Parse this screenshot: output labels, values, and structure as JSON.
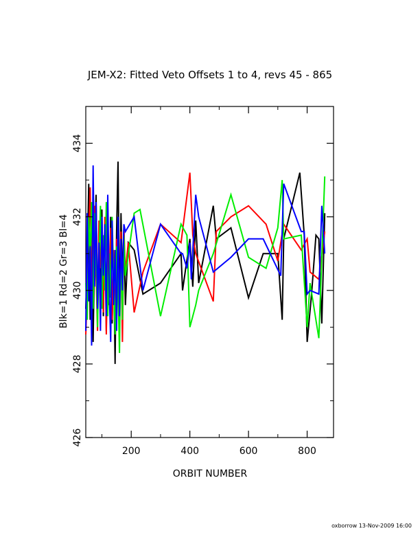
{
  "chart_data": {
    "type": "line",
    "title": "JEM-X2: Fitted Veto Offsets 1 to 4, revs 45 - 865",
    "xlabel": "ORBIT NUMBER",
    "ylabel": "Blk=1 Rd=2 Gr=3 Bl=4",
    "xlim": [
      45,
      890
    ],
    "ylim": [
      426,
      435
    ],
    "xticks": [
      200,
      400,
      600,
      800
    ],
    "xtick_labels": [
      "200",
      "400",
      "600",
      "800"
    ],
    "yticks": [
      426,
      428,
      430,
      432,
      434
    ],
    "ytick_labels": [
      "426",
      "428",
      "430",
      "432",
      "434"
    ],
    "grid": false,
    "footer": "oxborrow 13-Nov-2009 16:00",
    "series": [
      {
        "color": "#000000",
        "points": [
          [
            45,
            429.5
          ],
          [
            50,
            430.8
          ],
          [
            55,
            432.9
          ],
          [
            60,
            429.2
          ],
          [
            65,
            431.6
          ],
          [
            70,
            428.6
          ],
          [
            75,
            431.2
          ],
          [
            80,
            432.6
          ],
          [
            85,
            429.4
          ],
          [
            90,
            431.4
          ],
          [
            95,
            430.2
          ],
          [
            100,
            432.2
          ],
          [
            105,
            429.3
          ],
          [
            110,
            431.8
          ],
          [
            115,
            428.9
          ],
          [
            120,
            431.5
          ],
          [
            125,
            429.6
          ],
          [
            130,
            432.0
          ],
          [
            135,
            429.1
          ],
          [
            140,
            430.9
          ],
          [
            145,
            428.0
          ],
          [
            150,
            431.6
          ],
          [
            155,
            433.5
          ],
          [
            160,
            429.3
          ],
          [
            165,
            432.1
          ],
          [
            170,
            430.2
          ],
          [
            175,
            431.7
          ],
          [
            180,
            429.6
          ],
          [
            190,
            431.3
          ],
          [
            210,
            431.1
          ],
          [
            240,
            429.9
          ],
          [
            300,
            430.2
          ],
          [
            370,
            431.0
          ],
          [
            375,
            430.0
          ],
          [
            400,
            431.4
          ],
          [
            410,
            430.1
          ],
          [
            420,
            431.9
          ],
          [
            430,
            430.2
          ],
          [
            480,
            432.3
          ],
          [
            490,
            431.4
          ],
          [
            540,
            431.7
          ],
          [
            600,
            429.8
          ],
          [
            650,
            431.0
          ],
          [
            700,
            431.0
          ],
          [
            715,
            429.2
          ],
          [
            720,
            431.4
          ],
          [
            775,
            433.2
          ],
          [
            790,
            431.5
          ],
          [
            800,
            428.6
          ],
          [
            815,
            429.9
          ],
          [
            830,
            431.5
          ],
          [
            840,
            431.4
          ],
          [
            850,
            429.1
          ],
          [
            860,
            432.1
          ]
        ]
      },
      {
        "color": "#ff0000",
        "points": [
          [
            45,
            428.8
          ],
          [
            50,
            430.0
          ],
          [
            55,
            431.5
          ],
          [
            60,
            432.8
          ],
          [
            65,
            429.9
          ],
          [
            70,
            431.1
          ],
          [
            75,
            432.3
          ],
          [
            80,
            430.4
          ],
          [
            85,
            428.9
          ],
          [
            90,
            431.9
          ],
          [
            95,
            430.6
          ],
          [
            100,
            431.6
          ],
          [
            105,
            429.4
          ],
          [
            110,
            432.0
          ],
          [
            115,
            428.8
          ],
          [
            120,
            431.3
          ],
          [
            125,
            429.9
          ],
          [
            130,
            431.7
          ],
          [
            135,
            429.2
          ],
          [
            140,
            431.1
          ],
          [
            145,
            428.9
          ],
          [
            150,
            431.4
          ],
          [
            155,
            430.1
          ],
          [
            160,
            429.1
          ],
          [
            165,
            431.6
          ],
          [
            170,
            428.6
          ],
          [
            175,
            431.7
          ],
          [
            180,
            430.5
          ],
          [
            190,
            431.3
          ],
          [
            210,
            429.4
          ],
          [
            240,
            430.5
          ],
          [
            300,
            431.8
          ],
          [
            370,
            431.3
          ],
          [
            400,
            433.2
          ],
          [
            410,
            431.5
          ],
          [
            420,
            431.0
          ],
          [
            480,
            429.7
          ],
          [
            490,
            431.6
          ],
          [
            540,
            432.0
          ],
          [
            600,
            432.3
          ],
          [
            660,
            431.8
          ],
          [
            700,
            430.8
          ],
          [
            720,
            431.8
          ],
          [
            780,
            431.1
          ],
          [
            800,
            431.4
          ],
          [
            810,
            430.5
          ],
          [
            840,
            430.3
          ],
          [
            860,
            431.6
          ]
        ]
      },
      {
        "color": "#00ee00",
        "points": [
          [
            45,
            430.2
          ],
          [
            50,
            429.2
          ],
          [
            55,
            432.0
          ],
          [
            60,
            430.9
          ],
          [
            65,
            432.4
          ],
          [
            70,
            429.5
          ],
          [
            75,
            432.1
          ],
          [
            80,
            431.0
          ],
          [
            85,
            429.0
          ],
          [
            90,
            430.8
          ],
          [
            95,
            432.3
          ],
          [
            100,
            429.5
          ],
          [
            105,
            431.5
          ],
          [
            110,
            430.0
          ],
          [
            115,
            432.4
          ],
          [
            120,
            429.3
          ],
          [
            125,
            431.0
          ],
          [
            130,
            429.8
          ],
          [
            135,
            432.0
          ],
          [
            140,
            430.3
          ],
          [
            145,
            428.8
          ],
          [
            150,
            431.2
          ],
          [
            155,
            430.0
          ],
          [
            160,
            428.3
          ],
          [
            165,
            431.3
          ],
          [
            170,
            429.2
          ],
          [
            175,
            431.5
          ],
          [
            180,
            430.4
          ],
          [
            210,
            432.1
          ],
          [
            230,
            432.2
          ],
          [
            300,
            429.3
          ],
          [
            370,
            431.8
          ],
          [
            390,
            431.5
          ],
          [
            400,
            429.0
          ],
          [
            420,
            429.6
          ],
          [
            430,
            430.0
          ],
          [
            480,
            431.0
          ],
          [
            540,
            432.6
          ],
          [
            600,
            430.9
          ],
          [
            660,
            430.6
          ],
          [
            700,
            431.7
          ],
          [
            715,
            433.0
          ],
          [
            720,
            431.4
          ],
          [
            780,
            431.5
          ],
          [
            800,
            429.0
          ],
          [
            810,
            430.2
          ],
          [
            840,
            428.7
          ],
          [
            860,
            433.1
          ]
        ]
      },
      {
        "color": "#0000ff",
        "points": [
          [
            45,
            428.9
          ],
          [
            50,
            432.1
          ],
          [
            55,
            429.7
          ],
          [
            60,
            431.2
          ],
          [
            65,
            428.5
          ],
          [
            70,
            433.4
          ],
          [
            75,
            430.1
          ],
          [
            80,
            432.4
          ],
          [
            85,
            429.5
          ],
          [
            90,
            431.3
          ],
          [
            95,
            428.9
          ],
          [
            100,
            432.0
          ],
          [
            105,
            430.4
          ],
          [
            110,
            431.8
          ],
          [
            115,
            429.3
          ],
          [
            120,
            432.6
          ],
          [
            125,
            430.0
          ],
          [
            130,
            428.6
          ],
          [
            135,
            431.9
          ],
          [
            140,
            429.6
          ],
          [
            145,
            431.1
          ],
          [
            150,
            428.9
          ],
          [
            155,
            432.0
          ],
          [
            160,
            429.3
          ],
          [
            165,
            431.4
          ],
          [
            170,
            430.0
          ],
          [
            175,
            431.8
          ],
          [
            180,
            431.6
          ],
          [
            210,
            432.0
          ],
          [
            240,
            430.0
          ],
          [
            300,
            431.8
          ],
          [
            370,
            431.0
          ],
          [
            375,
            431.0
          ],
          [
            390,
            430.6
          ],
          [
            400,
            431.3
          ],
          [
            405,
            430.3
          ],
          [
            420,
            432.6
          ],
          [
            430,
            432.0
          ],
          [
            480,
            430.5
          ],
          [
            540,
            430.9
          ],
          [
            600,
            431.4
          ],
          [
            650,
            431.4
          ],
          [
            710,
            430.4
          ],
          [
            720,
            432.9
          ],
          [
            780,
            431.6
          ],
          [
            790,
            431.6
          ],
          [
            800,
            429.9
          ],
          [
            810,
            430.0
          ],
          [
            840,
            429.9
          ],
          [
            850,
            432.3
          ],
          [
            860,
            431.0
          ]
        ]
      }
    ]
  }
}
